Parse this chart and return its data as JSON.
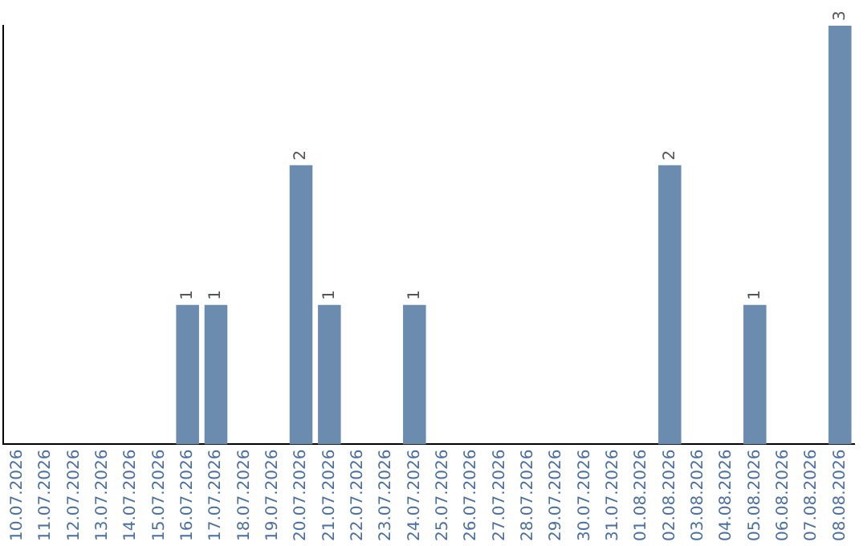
{
  "chart_data": {
    "type": "bar",
    "categories": [
      "10.07.2026",
      "11.07.2026",
      "12.07.2026",
      "13.07.2026",
      "14.07.2026",
      "15.07.2026",
      "16.07.2026",
      "17.07.2026",
      "18.07.2026",
      "19.07.2026",
      "20.07.2026",
      "21.07.2026",
      "22.07.2026",
      "23.07.2026",
      "24.07.2026",
      "25.07.2026",
      "26.07.2026",
      "27.07.2026",
      "28.07.2026",
      "29.07.2026",
      "30.07.2026",
      "31.07.2026",
      "01.08.2026",
      "02.08.2026",
      "03.08.2026",
      "04.08.2026",
      "05.08.2026",
      "06.08.2026",
      "07.08.2026",
      "08.08.2026"
    ],
    "values": [
      0,
      0,
      0,
      0,
      0,
      0,
      1,
      1,
      0,
      0,
      2,
      1,
      0,
      0,
      1,
      0,
      0,
      0,
      0,
      0,
      0,
      0,
      0,
      2,
      0,
      0,
      1,
      0,
      0,
      3
    ],
    "value_labels": [
      null,
      null,
      null,
      null,
      null,
      null,
      "1",
      "1",
      null,
      null,
      "2",
      "1",
      null,
      null,
      "1",
      null,
      null,
      null,
      null,
      null,
      null,
      null,
      null,
      "2",
      null,
      null,
      "1",
      null,
      null,
      "3"
    ],
    "color": "#6b8caf",
    "tick_labels": "x",
    "grid": false,
    "legend": false
  }
}
